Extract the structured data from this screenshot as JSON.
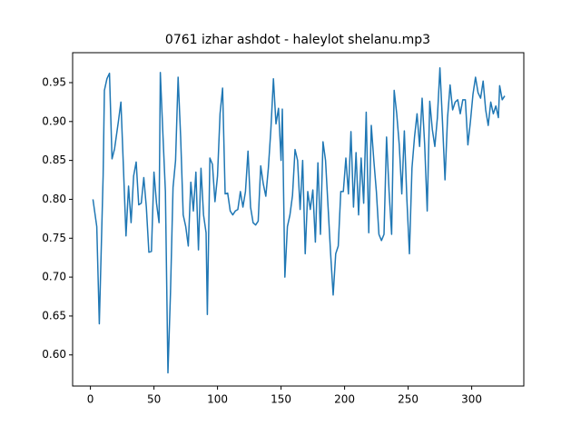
{
  "chart_data": {
    "type": "line",
    "title": "0761 izhar ashdot - haleylot shelanu.mp3",
    "x": [
      2,
      5,
      7,
      10,
      11,
      13,
      15,
      17,
      19,
      22,
      24,
      26,
      28,
      30,
      32,
      34,
      36,
      38,
      40,
      42,
      44,
      46,
      48,
      50,
      52,
      54,
      55,
      57,
      59,
      61,
      63,
      65,
      67,
      69,
      71,
      73,
      75,
      77,
      79,
      81,
      83,
      85,
      87,
      89,
      91,
      92,
      94,
      96,
      98,
      100,
      102,
      104,
      106,
      108,
      110,
      112,
      114,
      116,
      118,
      120,
      122,
      124,
      126,
      128,
      130,
      132,
      134,
      136,
      138,
      140,
      142,
      144,
      146,
      148,
      150,
      151,
      153,
      155,
      157,
      159,
      161,
      163,
      165,
      167,
      169,
      171,
      173,
      175,
      177,
      179,
      181,
      183,
      185,
      187,
      189,
      191,
      193,
      195,
      197,
      199,
      201,
      203,
      205,
      207,
      209,
      211,
      213,
      215,
      217,
      219,
      221,
      223,
      225,
      227,
      229,
      231,
      233,
      235,
      237,
      239,
      241,
      243,
      245,
      247,
      249,
      251,
      253,
      255,
      257,
      259,
      261,
      263,
      265,
      267,
      269,
      271,
      273,
      275,
      277,
      279,
      281,
      283,
      285,
      287,
      289,
      291,
      293,
      295,
      297,
      299,
      301,
      303,
      305,
      307,
      309,
      311,
      313,
      315,
      317,
      319,
      321,
      322,
      324,
      326
    ],
    "series": [
      {
        "color": "#1f77b4",
        "values": [
          0.8,
          0.765,
          0.64,
          0.83,
          0.94,
          0.955,
          0.962,
          0.852,
          0.865,
          0.9,
          0.925,
          0.84,
          0.753,
          0.817,
          0.77,
          0.83,
          0.848,
          0.793,
          0.795,
          0.828,
          0.79,
          0.732,
          0.733,
          0.835,
          0.795,
          0.77,
          0.963,
          0.885,
          0.81,
          0.577,
          0.68,
          0.815,
          0.85,
          0.957,
          0.88,
          0.78,
          0.765,
          0.74,
          0.822,
          0.785,
          0.835,
          0.735,
          0.84,
          0.78,
          0.757,
          0.652,
          0.853,
          0.845,
          0.797,
          0.83,
          0.91,
          0.943,
          0.807,
          0.808,
          0.785,
          0.78,
          0.785,
          0.787,
          0.81,
          0.79,
          0.81,
          0.862,
          0.79,
          0.77,
          0.767,
          0.772,
          0.843,
          0.82,
          0.804,
          0.84,
          0.89,
          0.955,
          0.897,
          0.917,
          0.85,
          0.916,
          0.7,
          0.765,
          0.78,
          0.805,
          0.864,
          0.85,
          0.787,
          0.85,
          0.73,
          0.81,
          0.787,
          0.812,
          0.745,
          0.847,
          0.755,
          0.874,
          0.85,
          0.79,
          0.73,
          0.677,
          0.73,
          0.74,
          0.81,
          0.81,
          0.853,
          0.807,
          0.887,
          0.79,
          0.86,
          0.78,
          0.853,
          0.795,
          0.912,
          0.757,
          0.895,
          0.85,
          0.81,
          0.755,
          0.747,
          0.755,
          0.88,
          0.81,
          0.755,
          0.94,
          0.91,
          0.87,
          0.807,
          0.888,
          0.8,
          0.73,
          0.84,
          0.88,
          0.91,
          0.868,
          0.93,
          0.87,
          0.785,
          0.926,
          0.89,
          0.868,
          0.905,
          0.969,
          0.9,
          0.825,
          0.905,
          0.947,
          0.915,
          0.925,
          0.928,
          0.91,
          0.928,
          0.928,
          0.87,
          0.9,
          0.935,
          0.957,
          0.937,
          0.93,
          0.952,
          0.915,
          0.895,
          0.925,
          0.91,
          0.92,
          0.905,
          0.946,
          0.928,
          0.933
        ]
      }
    ],
    "xlim": [
      -14,
      341
    ],
    "ylim": [
      0.56,
      0.9885
    ],
    "xticks": [
      0,
      50,
      100,
      150,
      200,
      250,
      300
    ],
    "yticks": [
      {
        "value": 0.6,
        "label": "0.60"
      },
      0.65,
      {
        "value": 0.7,
        "label": "0.70"
      },
      0.75,
      {
        "value": 0.8,
        "label": "0.80"
      },
      0.85,
      {
        "value": 0.9,
        "label": "0.90"
      },
      0.95
    ]
  }
}
